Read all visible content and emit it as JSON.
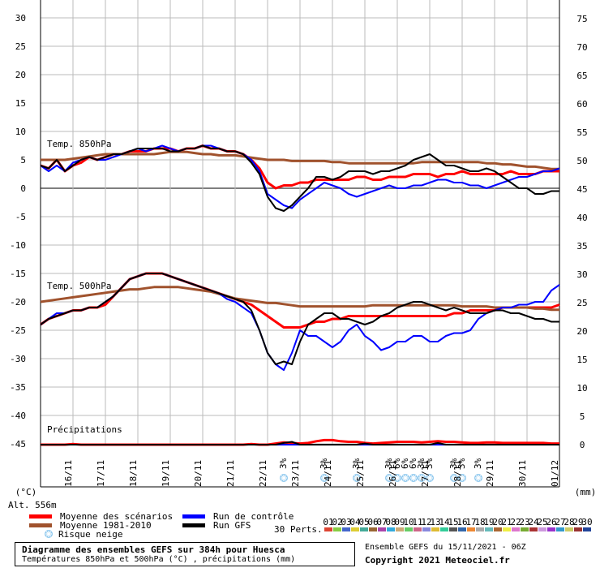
{
  "chart_data": {
    "type": "line",
    "title": "Diagramme des ensembles GEFS sur 384h pour Huesca",
    "subtitle": "Températures 850hPa et 500hPa (°C) , précipitations (mm)",
    "left_axis": {
      "label": "(°C)",
      "ticks": [
        30,
        25,
        20,
        15,
        10,
        5,
        0,
        -5,
        -10,
        -15,
        -20,
        -25,
        -30,
        -35,
        -40,
        -45
      ]
    },
    "right_axis": {
      "label": "(mm)",
      "ticks": [
        75,
        70,
        65,
        60,
        55,
        50,
        45,
        40,
        35,
        30,
        25,
        20,
        15,
        10,
        5,
        0
      ]
    },
    "altitude_label": "Alt. 556m",
    "x_labels": [
      "16/11",
      "17/11",
      "18/11",
      "19/11",
      "20/11",
      "21/11",
      "22/11",
      "23/11",
      "24/11",
      "25/11",
      "26/11",
      "27/11",
      "28/11",
      "29/11",
      "30/11",
      "01/12"
    ],
    "section_labels": {
      "t850": "Temp. 850hPa",
      "t500": "Temp. 500hPa",
      "precip": "Précipitations"
    },
    "x": [
      0,
      0.25,
      0.5,
      0.75,
      1,
      1.25,
      1.5,
      1.75,
      2,
      2.25,
      2.5,
      2.75,
      3,
      3.25,
      3.5,
      3.75,
      4,
      4.25,
      4.5,
      4.75,
      5,
      5.25,
      5.5,
      5.75,
      6,
      6.25,
      6.5,
      6.75,
      7,
      7.25,
      7.5,
      7.75,
      8,
      8.25,
      8.5,
      8.75,
      9,
      9.25,
      9.5,
      9.75,
      10,
      10.25,
      10.5,
      10.75,
      11,
      11.25,
      11.5,
      11.75,
      12,
      12.25,
      12.5,
      12.75,
      13,
      13.25,
      13.5,
      13.75,
      14,
      14.25,
      14.5,
      14.75,
      15,
      15.25,
      15.5,
      15.75,
      16
    ],
    "series": [
      {
        "name": "Moyenne des scénarios",
        "group": "t850",
        "color": "#ff0000",
        "width": 3,
        "values": [
          4,
          3.5,
          5,
          3,
          4,
          4.5,
          5.5,
          5,
          5.5,
          6,
          6,
          6.5,
          6.5,
          6.5,
          7,
          7,
          7,
          6.5,
          7,
          7,
          7.5,
          7,
          7,
          6.5,
          6.5,
          6,
          5,
          3.5,
          1,
          0,
          0.5,
          0.5,
          1,
          1,
          1.5,
          1.5,
          1.5,
          1.5,
          1.5,
          2,
          2,
          1.5,
          1.5,
          2,
          2,
          2,
          2.5,
          2.5,
          2.5,
          2,
          2.5,
          2.5,
          3,
          2.5,
          2.5,
          2.5,
          2.5,
          2.5,
          3,
          2.5,
          2.5,
          2.5,
          3,
          3,
          3
        ]
      },
      {
        "name": "Moyenne 1981-2010",
        "group": "t850",
        "color": "#a0522d",
        "width": 3,
        "values": [
          5,
          5,
          5,
          5,
          5.2,
          5.4,
          5.6,
          5.8,
          6,
          6,
          6,
          6,
          6,
          6,
          6,
          6.2,
          6.4,
          6.4,
          6.4,
          6.2,
          6,
          6,
          5.8,
          5.8,
          5.8,
          5.6,
          5.4,
          5.2,
          5,
          5,
          5,
          4.8,
          4.8,
          4.8,
          4.8,
          4.8,
          4.6,
          4.6,
          4.4,
          4.4,
          4.4,
          4.4,
          4.4,
          4.4,
          4.4,
          4.4,
          4.4,
          4.6,
          4.6,
          4.6,
          4.6,
          4.6,
          4.6,
          4.6,
          4.6,
          4.4,
          4.4,
          4.2,
          4.2,
          4,
          3.8,
          3.8,
          3.6,
          3.4,
          3.4
        ]
      },
      {
        "name": "Run de contrôle",
        "group": "t850",
        "color": "#0000ff",
        "width": 2,
        "values": [
          4,
          3,
          4,
          3,
          4.5,
          5,
          5.5,
          5,
          5,
          5.5,
          6,
          6.5,
          7,
          6.5,
          7,
          7.5,
          7,
          6.5,
          7,
          7,
          7.5,
          7.5,
          7,
          6.5,
          6.5,
          6,
          5,
          3,
          -1,
          -2,
          -3,
          -3.5,
          -2,
          -1,
          0,
          1,
          0.5,
          0,
          -1,
          -1.5,
          -1,
          -0.5,
          0,
          0.5,
          0,
          0,
          0.5,
          0.5,
          1,
          1.5,
          1.5,
          1,
          1,
          0.5,
          0.5,
          0,
          0.5,
          1,
          1.5,
          2,
          2,
          2.5,
          3,
          3,
          3.5
        ]
      },
      {
        "name": "Run GFS",
        "group": "t850",
        "color": "#000000",
        "width": 2,
        "values": [
          4,
          3.5,
          5,
          3,
          4,
          5,
          5.5,
          5,
          5.5,
          6,
          6,
          6.5,
          7,
          7,
          7,
          7,
          6.5,
          6.5,
          7,
          7,
          7.5,
          7,
          7,
          6.5,
          6.5,
          6,
          4.5,
          2.5,
          -1.5,
          -3.5,
          -4,
          -3,
          -1.5,
          0,
          2,
          2,
          1.5,
          2,
          3,
          3,
          3,
          2.5,
          3,
          3,
          3.5,
          4,
          5,
          5.5,
          6,
          5,
          4,
          4,
          3.5,
          3,
          3,
          3.5,
          3,
          2,
          1,
          0,
          0,
          -1,
          -1,
          -0.5,
          -0.5
        ]
      },
      {
        "name": "Moyenne des scénarios",
        "group": "t500",
        "color": "#ff0000",
        "width": 3,
        "values": [
          -24,
          -23,
          -22.5,
          -22,
          -21.5,
          -21.5,
          -21,
          -21,
          -20.5,
          -19,
          -17.5,
          -16,
          -15.5,
          -15,
          -15,
          -15,
          -15.5,
          -16,
          -16.5,
          -17,
          -17.5,
          -18,
          -18.5,
          -19,
          -19.5,
          -20,
          -20.5,
          -21.5,
          -22.5,
          -23.5,
          -24.5,
          -24.5,
          -24.5,
          -24,
          -23.5,
          -23.5,
          -23,
          -23,
          -22.5,
          -22.5,
          -22.5,
          -22.5,
          -22.5,
          -22.5,
          -22.5,
          -22.5,
          -22.5,
          -22.5,
          -22.5,
          -22.5,
          -22.5,
          -22,
          -22,
          -21.5,
          -21.5,
          -21.5,
          -21.5,
          -21,
          -21,
          -21,
          -21,
          -21,
          -21,
          -21,
          -20.5
        ]
      },
      {
        "name": "Moyenne 1981-2010",
        "group": "t500",
        "color": "#a0522d",
        "width": 3,
        "values": [
          -20,
          -19.8,
          -19.6,
          -19.4,
          -19.2,
          -19,
          -18.8,
          -18.6,
          -18.4,
          -18.2,
          -18,
          -17.8,
          -17.8,
          -17.6,
          -17.4,
          -17.4,
          -17.4,
          -17.4,
          -17.6,
          -17.8,
          -18,
          -18.2,
          -18.6,
          -19,
          -19.4,
          -19.6,
          -19.8,
          -20,
          -20.2,
          -20.2,
          -20.4,
          -20.6,
          -20.8,
          -20.8,
          -20.8,
          -20.8,
          -20.8,
          -20.8,
          -20.8,
          -20.8,
          -20.8,
          -20.6,
          -20.6,
          -20.6,
          -20.6,
          -20.6,
          -20.6,
          -20.6,
          -20.6,
          -20.6,
          -20.6,
          -20.6,
          -20.8,
          -20.8,
          -20.8,
          -20.8,
          -21,
          -21,
          -21,
          -21,
          -21,
          -21.2,
          -21.2,
          -21.4,
          -21.4
        ]
      },
      {
        "name": "Run de contrôle",
        "group": "t500",
        "color": "#0000ff",
        "width": 2,
        "values": [
          -24,
          -23,
          -22,
          -22,
          -21.5,
          -21.5,
          -21,
          -21,
          -20,
          -19,
          -17.5,
          -16,
          -15.5,
          -15,
          -15,
          -15,
          -15.5,
          -16,
          -16.5,
          -17,
          -17.5,
          -18,
          -18.5,
          -19.5,
          -20,
          -21,
          -22,
          -25,
          -29,
          -31,
          -32,
          -29,
          -25,
          -26,
          -26,
          -27,
          -28,
          -27,
          -25,
          -24,
          -26,
          -27,
          -28.5,
          -28,
          -27,
          -27,
          -26,
          -26,
          -27,
          -27,
          -26,
          -25.5,
          -25.5,
          -25,
          -23,
          -22,
          -21.5,
          -21,
          -21,
          -20.5,
          -20.5,
          -20,
          -20,
          -18,
          -17
        ]
      },
      {
        "name": "Run GFS",
        "group": "t500",
        "color": "#000000",
        "width": 2,
        "values": [
          -24,
          -23,
          -22.5,
          -22,
          -21.5,
          -21.5,
          -21,
          -21,
          -20,
          -19,
          -17.5,
          -16,
          -15.5,
          -15,
          -15,
          -15,
          -15.5,
          -16,
          -16.5,
          -17,
          -17.5,
          -18,
          -18.5,
          -19,
          -19.5,
          -20,
          -21.5,
          -25,
          -29,
          -31,
          -30.5,
          -31,
          -27,
          -24,
          -23,
          -22,
          -22,
          -23,
          -23,
          -23.5,
          -24,
          -23.5,
          -22.5,
          -22,
          -21,
          -20.5,
          -20,
          -20,
          -20.5,
          -21,
          -21.5,
          -21,
          -21.5,
          -22,
          -22,
          -22,
          -21.5,
          -21.5,
          -22,
          -22,
          -22.5,
          -23,
          -23,
          -23.5,
          -23.5
        ]
      },
      {
        "name": "Moyenne des scénarios",
        "group": "precip",
        "color": "#ff0000",
        "width": 3,
        "values": [
          0,
          0,
          0,
          0,
          0.1,
          0,
          0,
          0,
          0,
          0,
          0,
          0,
          0,
          0,
          0,
          0,
          0,
          0,
          0,
          0,
          0,
          0,
          0,
          0,
          0,
          0,
          0.1,
          0,
          0,
          0.2,
          0.4,
          0.3,
          0.2,
          0.3,
          0.6,
          0.8,
          0.8,
          0.6,
          0.5,
          0.5,
          0.3,
          0.2,
          0.3,
          0.4,
          0.5,
          0.5,
          0.5,
          0.4,
          0.5,
          0.6,
          0.5,
          0.5,
          0.4,
          0.3,
          0.3,
          0.4,
          0.4,
          0.3,
          0.3,
          0.3,
          0.3,
          0.3,
          0.3,
          0.2,
          0.2
        ]
      },
      {
        "name": "Run de contrôle",
        "group": "precip",
        "color": "#0000ff",
        "width": 2,
        "values": [
          0,
          0,
          0,
          0,
          0,
          0,
          0,
          0,
          0,
          0,
          0,
          0,
          0,
          0,
          0,
          0,
          0,
          0,
          0,
          0,
          0,
          0,
          0,
          0,
          0,
          0,
          0,
          0,
          0,
          0,
          0,
          0,
          0,
          0,
          0,
          0,
          0,
          0,
          0,
          0,
          0,
          0,
          0,
          0,
          0,
          0,
          0,
          0,
          0,
          0,
          0,
          0,
          0,
          0,
          0,
          0,
          0,
          0,
          0,
          0,
          0,
          0,
          0,
          0,
          0
        ]
      },
      {
        "name": "Run GFS",
        "group": "precip",
        "color": "#000000",
        "width": 2,
        "values": [
          0,
          0,
          0,
          0,
          0,
          0,
          0,
          0,
          0,
          0,
          0,
          0,
          0,
          0,
          0,
          0,
          0,
          0,
          0,
          0,
          0,
          0,
          0,
          0,
          0,
          0,
          0,
          0,
          0,
          0,
          0.3,
          0.5,
          0,
          0,
          0,
          0,
          0,
          0,
          0,
          0,
          0.2,
          0,
          0,
          0,
          0,
          0,
          0,
          0,
          0,
          0.3,
          0,
          0,
          0,
          0,
          0,
          0,
          0,
          0,
          0,
          0,
          0,
          0,
          0,
          0,
          0
        ]
      }
    ],
    "snow_risk_markers": [
      {
        "x": 7.5,
        "label": "3%"
      },
      {
        "x": 8.75,
        "label": "3%"
      },
      {
        "x": 9.75,
        "label": "3%"
      },
      {
        "x": 10.75,
        "label": "3%"
      },
      {
        "x": 11,
        "label": "6%"
      },
      {
        "x": 11.25,
        "label": "6%"
      },
      {
        "x": 11.5,
        "label": "6%"
      },
      {
        "x": 11.75,
        "label": "3%"
      },
      {
        "x": 12,
        "label": "3%"
      },
      {
        "x": 12.75,
        "label": "3%"
      },
      {
        "x": 13,
        "label": "3%"
      },
      {
        "x": 13.5,
        "label": "3%"
      }
    ],
    "legend": [
      {
        "label": "Moyenne des scénarios",
        "color": "#ff0000"
      },
      {
        "label": "Moyenne 1981-2010",
        "color": "#a0522d"
      },
      {
        "label": "Run de contrôle",
        "color": "#0000ff"
      },
      {
        "label": "Run GFS",
        "color": "#000000"
      },
      {
        "label": "Risque neige",
        "color": "#66aadd",
        "icon": "snowflake-icon"
      }
    ],
    "perts_label": "30 Perts.",
    "perturbations": [
      {
        "n": "01",
        "color": "#dd4433"
      },
      {
        "n": "02",
        "color": "#88cc44"
      },
      {
        "n": "03",
        "color": "#4466cc"
      },
      {
        "n": "04",
        "color": "#ddcc33"
      },
      {
        "n": "05",
        "color": "#44aa99"
      },
      {
        "n": "06",
        "color": "#996633"
      },
      {
        "n": "07",
        "color": "#aa44aa"
      },
      {
        "n": "08",
        "color": "#33aadd"
      },
      {
        "n": "09",
        "color": "#ccaa77"
      },
      {
        "n": "10",
        "color": "#66cc66"
      },
      {
        "n": "11",
        "color": "#cc6688"
      },
      {
        "n": "12",
        "color": "#8888dd"
      },
      {
        "n": "13",
        "color": "#ddbb33"
      },
      {
        "n": "14",
        "color": "#33cc99"
      },
      {
        "n": "15",
        "color": "#555555"
      },
      {
        "n": "16",
        "color": "#3366aa"
      },
      {
        "n": "17",
        "color": "#ee8833"
      },
      {
        "n": "18",
        "color": "#aaaaaa"
      },
      {
        "n": "19",
        "color": "#66bbbb"
      },
      {
        "n": "20",
        "color": "#aa6633"
      },
      {
        "n": "21",
        "color": "#eeee44"
      },
      {
        "n": "22",
        "color": "#dd77cc"
      },
      {
        "n": "23",
        "color": "#77aa33"
      },
      {
        "n": "24",
        "color": "#aa3333"
      },
      {
        "n": "25",
        "color": "#cc99dd"
      },
      {
        "n": "26",
        "color": "#9933cc"
      },
      {
        "n": "27",
        "color": "#3399cc"
      },
      {
        "n": "28",
        "color": "#cccc66"
      },
      {
        "n": "29",
        "color": "#993333"
      },
      {
        "n": "30",
        "color": "#224499"
      }
    ]
  },
  "footer": {
    "title": "Diagramme des ensembles GEFS sur 384h pour Huesca",
    "subtitle": "Températures 850hPa et 500hPa (°C) , précipitations (mm)",
    "run_info": "Ensemble GEFS du 15/11/2021 - 06Z",
    "copyright": "Copyright 2021 Meteociel.fr"
  }
}
